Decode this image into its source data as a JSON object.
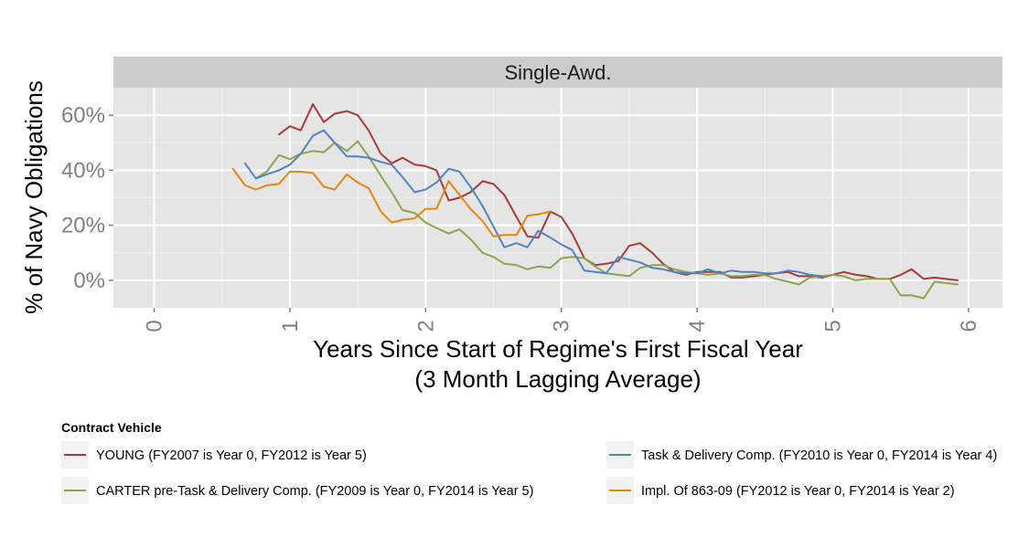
{
  "chart_data": {
    "type": "line",
    "facet_label": "Single-Awd.",
    "xlabel_line1": "Years Since Start of Regime's First Fiscal Year",
    "xlabel_line2": "(3 Month Lagging Average)",
    "ylabel": "% of Navy Obligations",
    "xlim": [
      -0.3,
      6.25
    ],
    "ylim": [
      -10,
      70
    ],
    "x_ticks": [
      0,
      1,
      2,
      3,
      4,
      5,
      6
    ],
    "x_tick_labels": [
      "0",
      "1",
      "2",
      "3",
      "4",
      "5",
      "6"
    ],
    "y_ticks": [
      0,
      20,
      40,
      60
    ],
    "y_tick_labels": [
      "0%",
      "20%",
      "40%",
      "60%"
    ],
    "grid": true,
    "legend": {
      "title": "Contract Vehicle",
      "position": "bottom"
    },
    "series": [
      {
        "name": "YOUNG (FY2007 is Year 0, FY2012 is Year 5)",
        "color": "#A83B35",
        "x": [
          0.92,
          1.0,
          1.08,
          1.17,
          1.25,
          1.33,
          1.42,
          1.5,
          1.58,
          1.67,
          1.75,
          1.83,
          1.92,
          2.0,
          2.08,
          2.17,
          2.25,
          2.33,
          2.42,
          2.5,
          2.58,
          2.67,
          2.75,
          2.83,
          2.92,
          3.0,
          3.08,
          3.17,
          3.25,
          3.33,
          3.42,
          3.5,
          3.58,
          3.67,
          3.75,
          3.83,
          3.92,
          4.0,
          4.08,
          4.17,
          4.25,
          4.33,
          4.42,
          4.5,
          4.58,
          4.67,
          4.75,
          4.83,
          4.92,
          5.0,
          5.08,
          5.17,
          5.25,
          5.33,
          5.42,
          5.5,
          5.58,
          5.67,
          5.75,
          5.83,
          5.92
        ],
        "y": [
          53,
          56,
          54.5,
          64,
          57.5,
          60.5,
          61.5,
          60,
          54.5,
          46,
          42.5,
          44.5,
          42,
          41.5,
          40,
          29,
          30,
          32,
          36,
          35,
          31,
          23,
          16,
          15.5,
          25,
          23,
          17,
          8,
          5.5,
          6,
          7,
          12.5,
          13.5,
          10,
          6,
          3,
          2,
          3,
          3,
          3,
          1,
          1,
          1.5,
          2,
          2.5,
          3,
          1.5,
          1.5,
          1,
          2,
          3,
          2,
          1.5,
          0.5,
          0.5,
          2,
          4,
          0.5,
          1,
          0.5,
          0
        ]
      },
      {
        "name": "CARTER pre-Task & Delivery Comp. (FY2009 is Year 0, FY2014 is Year 5)",
        "color": "#8AA54A",
        "x": [
          0.75,
          0.83,
          0.92,
          1.0,
          1.08,
          1.17,
          1.25,
          1.33,
          1.42,
          1.5,
          1.58,
          1.67,
          1.75,
          1.83,
          1.92,
          2.0,
          2.08,
          2.17,
          2.25,
          2.33,
          2.42,
          2.5,
          2.58,
          2.67,
          2.75,
          2.83,
          2.92,
          3.0,
          3.08,
          3.17,
          3.25,
          3.33,
          3.42,
          3.5,
          3.58,
          3.67,
          3.75,
          3.83,
          3.92,
          4.0,
          4.08,
          4.17,
          4.25,
          4.33,
          4.42,
          4.5,
          4.58,
          4.67,
          4.75,
          4.83,
          4.92,
          5.0,
          5.08,
          5.17,
          5.25,
          5.33,
          5.42,
          5.5,
          5.58,
          5.67,
          5.75,
          5.83,
          5.92
        ],
        "y": [
          37,
          39.5,
          45.5,
          44,
          46,
          47,
          46.5,
          50,
          47,
          50.5,
          45,
          38,
          32,
          25.5,
          24.5,
          21,
          19,
          17,
          18.5,
          15,
          10,
          8.5,
          6,
          5.5,
          4,
          5,
          4.5,
          8,
          8.5,
          8,
          5,
          2.5,
          2,
          1.5,
          4.5,
          5.5,
          5.5,
          4,
          3,
          2.5,
          2,
          2.5,
          1.5,
          1.5,
          2,
          2,
          0.5,
          -0.5,
          -1.5,
          1,
          1.5,
          2,
          1.5,
          0,
          0.5,
          0.5,
          0.5,
          -5.5,
          -5.5,
          -6.5,
          -0.5,
          -1,
          -1.5
        ]
      },
      {
        "name": "Task & Delivery Comp. (FY2010 is Year 0, FY2014 is Year 4)",
        "color": "#4E84C4",
        "x": [
          0.67,
          0.75,
          0.83,
          0.92,
          1.0,
          1.08,
          1.17,
          1.25,
          1.33,
          1.42,
          1.5,
          1.58,
          1.67,
          1.75,
          1.83,
          1.92,
          2.0,
          2.08,
          2.17,
          2.25,
          2.33,
          2.42,
          2.5,
          2.58,
          2.67,
          2.75,
          2.83,
          2.92,
          3.0,
          3.08,
          3.17,
          3.25,
          3.33,
          3.42,
          3.5,
          3.58,
          3.67,
          3.75,
          3.83,
          3.92,
          4.0,
          4.08,
          4.17,
          4.25,
          4.33,
          4.42,
          4.5,
          4.58,
          4.67,
          4.75,
          4.83,
          4.92
        ],
        "y": [
          42.5,
          37,
          38.5,
          40,
          42,
          46,
          52.5,
          54.5,
          50,
          45,
          45,
          44.5,
          43,
          42,
          37.5,
          32,
          33,
          35.5,
          40.5,
          39.5,
          34,
          27,
          19.5,
          12,
          13.5,
          12,
          18,
          15.5,
          13,
          11,
          3.5,
          3,
          2.5,
          8.5,
          7.5,
          6.5,
          4.5,
          4,
          3,
          2.5,
          2.5,
          4,
          2.5,
          3.5,
          3,
          3,
          2.5,
          2.5,
          3.5,
          3,
          2,
          1.5
        ]
      },
      {
        "name": "Impl. Of 863-09 (FY2012 is Year 0, FY2014 is Year 2)",
        "color": "#E6870C",
        "x": [
          0.58,
          0.67,
          0.75,
          0.83,
          0.92,
          1.0,
          1.08,
          1.17,
          1.25,
          1.33,
          1.42,
          1.5,
          1.58,
          1.67,
          1.75,
          1.83,
          1.92,
          2.0,
          2.08,
          2.17,
          2.25,
          2.33,
          2.42,
          2.5,
          2.58,
          2.67,
          2.75,
          2.83,
          2.92
        ],
        "y": [
          40.5,
          34.5,
          33,
          34.5,
          35,
          39.5,
          39.5,
          39,
          34,
          33,
          38.5,
          35.5,
          33.5,
          25,
          21,
          22,
          22.5,
          26,
          26,
          36,
          31,
          26,
          21.5,
          16,
          16.5,
          16.5,
          23.5,
          24,
          25
        ]
      }
    ]
  }
}
